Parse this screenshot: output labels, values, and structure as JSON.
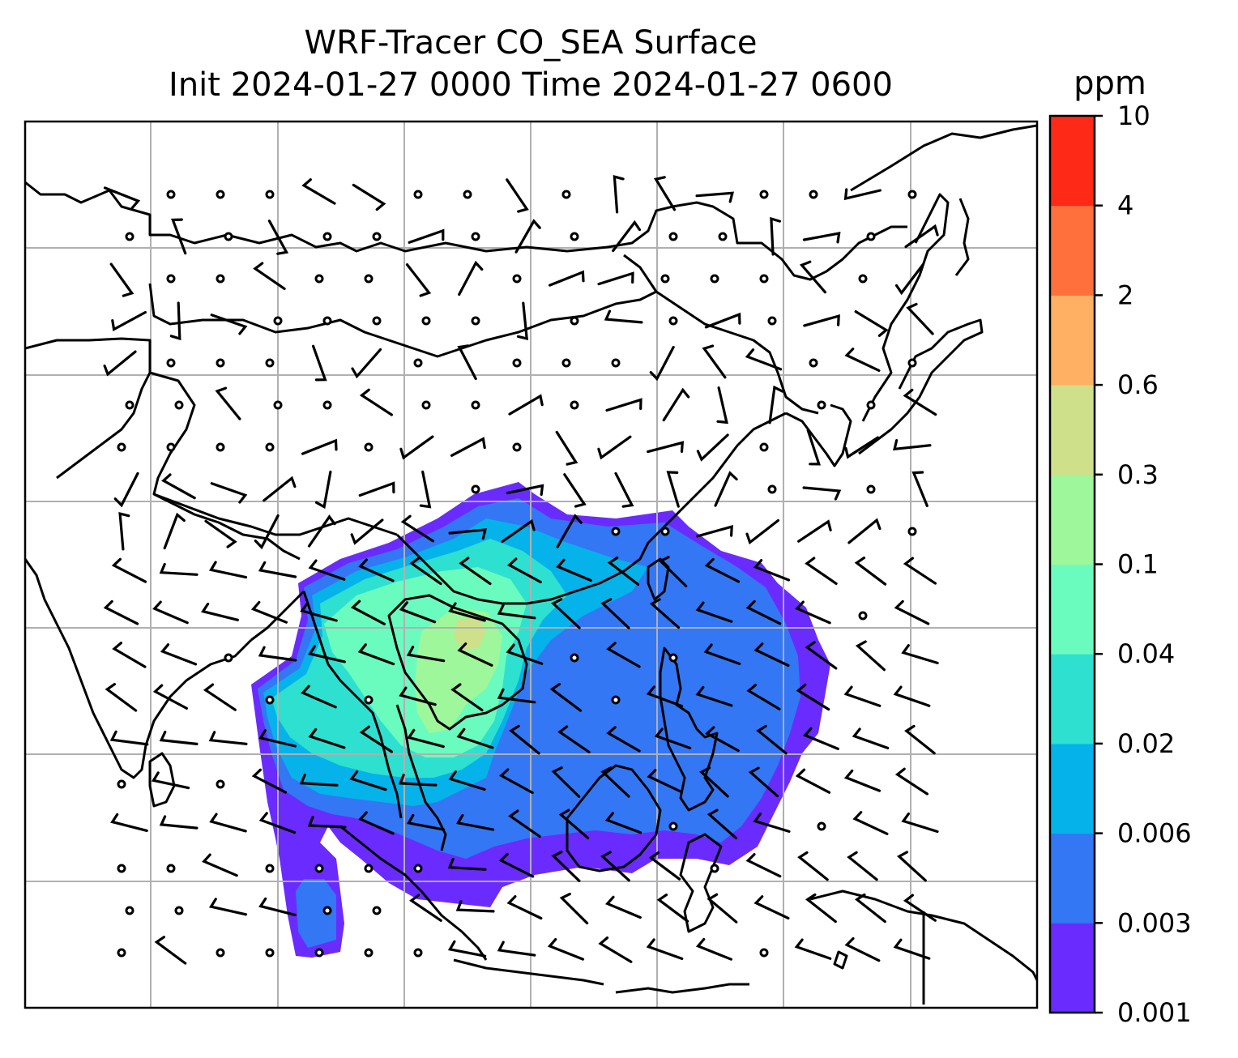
{
  "title_line1": "WRF-Tracer CO_SEA Surface",
  "title_line2": "Init 2024-01-27 0000 Time 2024-01-27 0600",
  "colorbar": {
    "unit": "ppm",
    "levels": [
      "0.001",
      "0.003",
      "0.006",
      "0.02",
      "0.04",
      "0.1",
      "0.3",
      "0.6",
      "2",
      "4",
      "10"
    ],
    "colors": [
      "#6a2bff",
      "#3377f5",
      "#05b3ea",
      "#2ee0d0",
      "#6afcbf",
      "#9ef79a",
      "#cfe08a",
      "#ffb062",
      "#ff703d",
      "#ff2918"
    ]
  },
  "map": {
    "land_color": "#ffffff",
    "coast_color": "#000000",
    "grid_color": "#b0b0b0"
  }
}
